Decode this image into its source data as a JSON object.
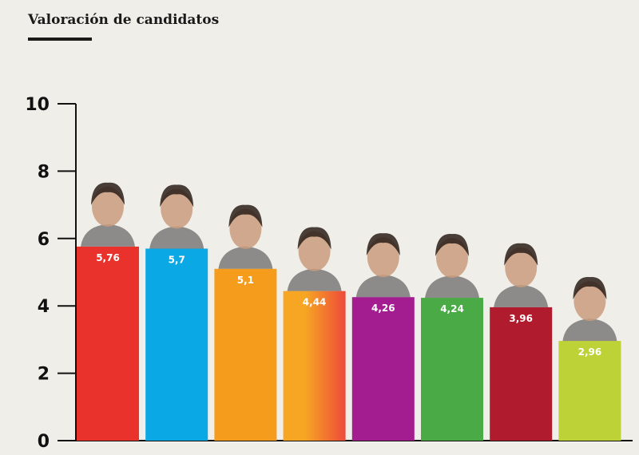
{
  "title": "Valoración de candidatos",
  "chart_data": {
    "type": "bar",
    "title": "Valoración de candidatos",
    "xlabel": "",
    "ylabel": "",
    "ylim": [
      0,
      10
    ],
    "yticks": [
      0,
      2,
      4,
      6,
      8,
      10
    ],
    "grid": false,
    "categories": [
      "",
      "",
      "",
      "",
      "",
      "",
      "",
      ""
    ],
    "values": [
      5.76,
      5.7,
      5.1,
      4.44,
      4.26,
      4.24,
      3.96,
      2.96
    ],
    "value_labels": [
      "5,76",
      "5,7",
      "5,1",
      "4,44",
      "4,26",
      "4,24",
      "3,96",
      "2,96"
    ],
    "colors": [
      "#e8322b",
      "#0aa9e6",
      "#f59c1d",
      "#f6a623",
      "#a31d91",
      "#4aab46",
      "#b01b2e",
      "#bcd236"
    ],
    "gradient_end": [
      "",
      "",
      "",
      "#ee4a3a",
      "",
      "",
      "",
      ""
    ],
    "photo_icons": [
      "candidate-photo-icon",
      "candidate-photo-icon",
      "candidate-photo-icon",
      "candidate-photo-icon",
      "candidate-photo-icon",
      "candidate-photo-icon",
      "candidate-photo-icon",
      "candidate-photo-icon"
    ]
  }
}
